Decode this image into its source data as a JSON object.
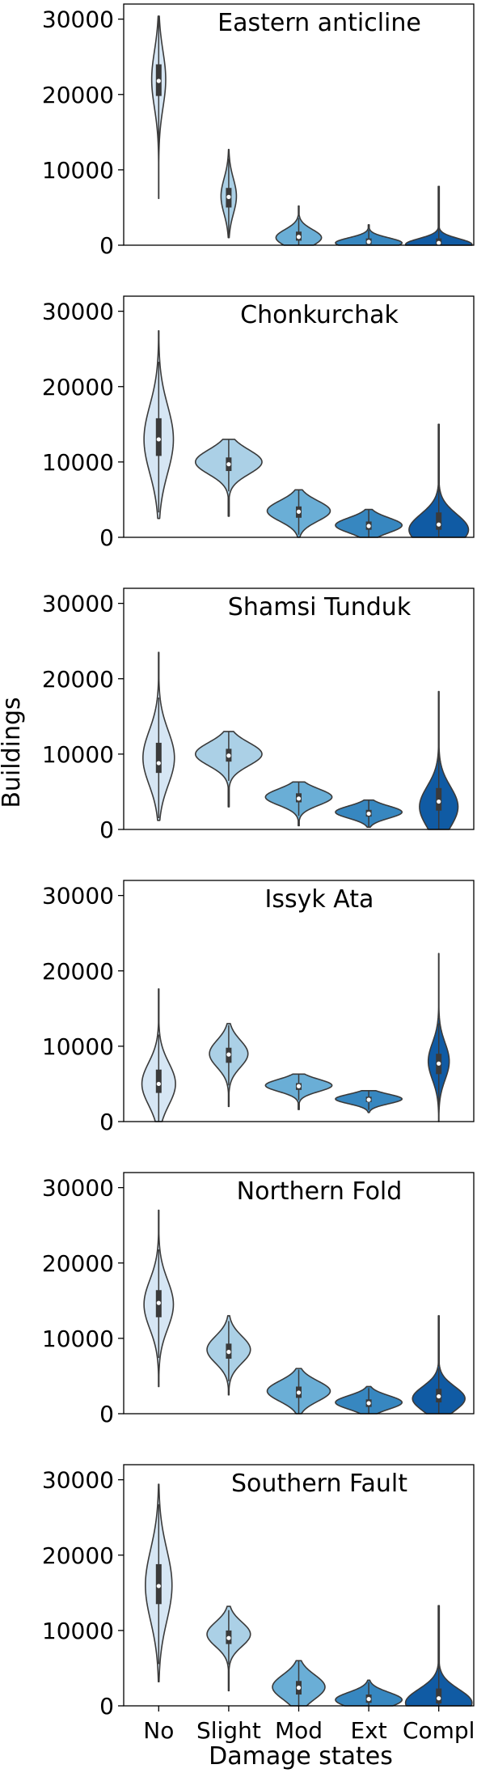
{
  "chart_data": {
    "type": "violin",
    "ylabel": "Buildings",
    "xlabel": "Damage states",
    "categories": [
      "No",
      "Slight",
      "Mod",
      "Ext",
      "Compl"
    ],
    "yticks": [
      0,
      10000,
      20000,
      30000
    ],
    "ylim": [
      0,
      32000
    ],
    "grid": false,
    "colors": [
      "#d6e6f4",
      "#abd0e6",
      "#6aaed6",
      "#3787c0",
      "#105ba4"
    ],
    "panels": [
      {
        "title": "Eastern anticline",
        "violins": [
          {
            "min": 6200,
            "max": 30400,
            "mode": 22000,
            "q1": 19800,
            "median": 21800,
            "q3": 24000,
            "width": 0.2
          },
          {
            "min": 1000,
            "max": 12700,
            "mode": 6500,
            "q1": 5000,
            "median": 6400,
            "q3": 7600,
            "width": 0.22
          },
          {
            "min": 0,
            "max": 5200,
            "mode": 1000,
            "q1": 600,
            "median": 1100,
            "q3": 1800,
            "width": 0.65
          },
          {
            "min": 0,
            "max": 2700,
            "mode": 300,
            "q1": 150,
            "median": 450,
            "q3": 900,
            "width": 0.95
          },
          {
            "min": 0,
            "max": 7800,
            "mode": 100,
            "q1": 50,
            "median": 300,
            "q3": 900,
            "width": 0.95
          }
        ]
      },
      {
        "title": "Chonkurchak",
        "violins": [
          {
            "min": 2500,
            "max": 27400,
            "mode": 13000,
            "q1": 10800,
            "median": 13000,
            "q3": 15800,
            "width": 0.42
          },
          {
            "min": 2800,
            "max": 13000,
            "mode": 10000,
            "q1": 8800,
            "median": 9700,
            "q3": 10600,
            "width": 0.95
          },
          {
            "min": 0,
            "max": 6300,
            "mode": 3500,
            "q1": 2600,
            "median": 3400,
            "q3": 4100,
            "width": 0.9
          },
          {
            "min": 0,
            "max": 3700,
            "mode": 1600,
            "q1": 1000,
            "median": 1500,
            "q3": 2100,
            "width": 0.95
          },
          {
            "min": 0,
            "max": 15000,
            "mode": 1000,
            "q1": 1000,
            "median": 1700,
            "q3": 3300,
            "width": 0.85
          }
        ]
      },
      {
        "title": "Shamsi Tunduk",
        "violins": [
          {
            "min": 1200,
            "max": 23500,
            "mode": 9500,
            "q1": 7500,
            "median": 8800,
            "q3": 11500,
            "width": 0.45
          },
          {
            "min": 3000,
            "max": 13000,
            "mode": 10000,
            "q1": 9000,
            "median": 9800,
            "q3": 10700,
            "width": 0.95
          },
          {
            "min": 500,
            "max": 6300,
            "mode": 4300,
            "q1": 3600,
            "median": 4100,
            "q3": 4800,
            "width": 0.95
          },
          {
            "min": 300,
            "max": 3900,
            "mode": 2300,
            "q1": 1700,
            "median": 2100,
            "q3": 2600,
            "width": 0.95
          },
          {
            "min": 0,
            "max": 18300,
            "mode": 3000,
            "q1": 2500,
            "median": 3700,
            "q3": 5500,
            "width": 0.55
          }
        ]
      },
      {
        "title": "Issyk Ata",
        "violins": [
          {
            "min": 0,
            "max": 17600,
            "mode": 5000,
            "q1": 3800,
            "median": 5000,
            "q3": 6900,
            "width": 0.48
          },
          {
            "min": 2000,
            "max": 13000,
            "mode": 9000,
            "q1": 7800,
            "median": 8900,
            "q3": 9800,
            "width": 0.55
          },
          {
            "min": 1600,
            "max": 6300,
            "mode": 4800,
            "q1": 4200,
            "median": 4700,
            "q3": 5100,
            "width": 0.95
          },
          {
            "min": 1200,
            "max": 4100,
            "mode": 3000,
            "q1": 2600,
            "median": 2900,
            "q3": 3300,
            "width": 0.95
          },
          {
            "min": 0,
            "max": 22300,
            "mode": 8000,
            "q1": 6300,
            "median": 7700,
            "q3": 9000,
            "width": 0.3
          }
        ]
      },
      {
        "title": "Northern Fold",
        "violins": [
          {
            "min": 3600,
            "max": 27000,
            "mode": 14500,
            "q1": 12800,
            "median": 14700,
            "q3": 16400,
            "width": 0.42
          },
          {
            "min": 2500,
            "max": 13000,
            "mode": 8500,
            "q1": 7300,
            "median": 8200,
            "q3": 9300,
            "width": 0.62
          },
          {
            "min": 0,
            "max": 6000,
            "mode": 3000,
            "q1": 2100,
            "median": 2800,
            "q3": 3600,
            "width": 0.9
          },
          {
            "min": 0,
            "max": 3600,
            "mode": 1500,
            "q1": 900,
            "median": 1400,
            "q3": 1900,
            "width": 0.95
          },
          {
            "min": 0,
            "max": 13000,
            "mode": 2000,
            "q1": 1500,
            "median": 2300,
            "q3": 3300,
            "width": 0.75
          }
        ]
      },
      {
        "title": "Southern Fault",
        "violins": [
          {
            "min": 3200,
            "max": 29400,
            "mode": 16000,
            "q1": 13500,
            "median": 15900,
            "q3": 18800,
            "width": 0.38
          },
          {
            "min": 2000,
            "max": 13200,
            "mode": 9500,
            "q1": 8200,
            "median": 9000,
            "q3": 10000,
            "width": 0.62
          },
          {
            "min": 0,
            "max": 6000,
            "mode": 2500,
            "q1": 1500,
            "median": 2400,
            "q3": 3300,
            "width": 0.75
          },
          {
            "min": 0,
            "max": 3400,
            "mode": 800,
            "q1": 400,
            "median": 900,
            "q3": 1500,
            "width": 0.95
          },
          {
            "min": 0,
            "max": 13300,
            "mode": 400,
            "q1": 300,
            "median": 1000,
            "q3": 2300,
            "width": 0.95
          }
        ]
      }
    ]
  }
}
